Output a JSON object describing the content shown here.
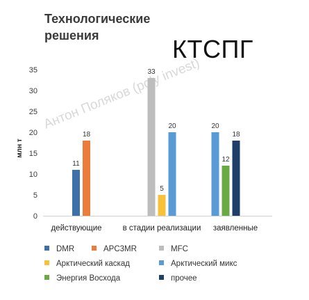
{
  "header": {
    "title": "Технологические\nрешения",
    "badge": "КТСПГ",
    "watermark": "Антон Поляков (poly invest)"
  },
  "chart_data": {
    "type": "bar",
    "categories": [
      "действующие",
      "в стадии реализации",
      "заявленные"
    ],
    "ylabel": "млн т",
    "xlabel": "",
    "ylim": [
      0,
      35
    ],
    "yticks": [
      0,
      5,
      10,
      15,
      20,
      25,
      30,
      35
    ],
    "grid": false,
    "legend_position": "bottom",
    "series": [
      {
        "name": "DMR",
        "color": "#3f6fa8",
        "values": [
          11,
          null,
          null
        ]
      },
      {
        "name": "APC3MR",
        "color": "#ec7c3c",
        "values": [
          18,
          null,
          null
        ]
      },
      {
        "name": "MFC",
        "color": "#bdbdbd",
        "values": [
          null,
          33,
          null
        ]
      },
      {
        "name": "Арктический каскад",
        "color": "#f7c23a",
        "values": [
          null,
          5,
          null
        ]
      },
      {
        "name": "Арктический микс",
        "color": "#5b9bd5",
        "values": [
          null,
          20,
          20
        ]
      },
      {
        "name": "Энергия Восхода",
        "color": "#6aaa45",
        "values": [
          null,
          null,
          12
        ]
      },
      {
        "name": "прочее",
        "color": "#1f3f6b",
        "values": [
          null,
          null,
          18
        ]
      }
    ]
  }
}
